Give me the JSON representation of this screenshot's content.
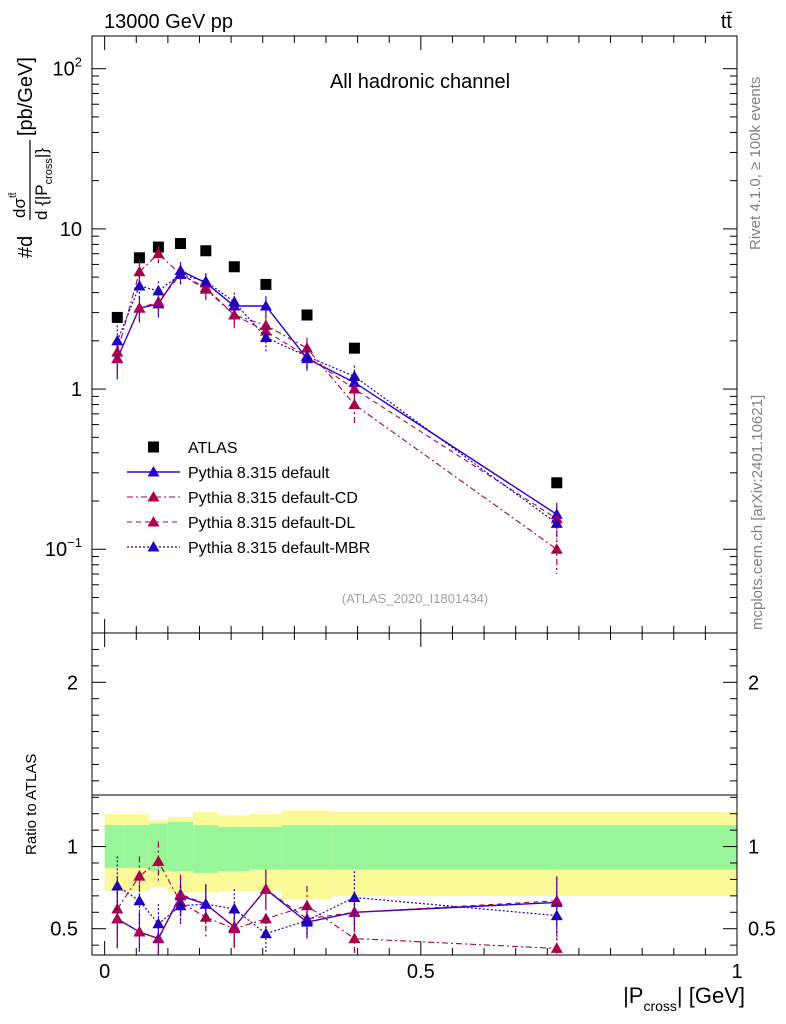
{
  "header": {
    "energy_label": "13000 GeV pp",
    "process_label": "tt̄"
  },
  "side_labels": {
    "rivet": "Rivet 4.1.0, ≥ 100k events",
    "mcplots": "mcplots.cern.ch [arXiv:2401.10621]"
  },
  "colors": {
    "data": "#000000",
    "default": "#2a00cc",
    "cd": "#aa0044",
    "dl": "#aa0055",
    "mbr": "#2200bb",
    "band_inner": "#99f599",
    "band_outer": "#fafa99"
  },
  "chart_data": [
    {
      "type": "scatter",
      "scale": "log",
      "title": "All hadronic channel",
      "analysis_tag": "(ATLAS_2020_I1801434)",
      "ylabel": "#d dσ^ttbar / d{|P_cross|} [pb/GeV]",
      "xlim": [
        -0.02,
        1.0
      ],
      "ylim": [
        0.03,
        160
      ],
      "yticks": [
        {
          "value": 0.1,
          "base": "10",
          "exp": "−1"
        },
        {
          "value": 1,
          "base": "1",
          "exp": ""
        },
        {
          "value": 10,
          "base": "10",
          "exp": ""
        },
        {
          "value": 100,
          "base": "10",
          "exp": "2"
        }
      ],
      "legend_position": "bottom-left",
      "series": [
        {
          "key": "atlas",
          "name": "ATLAS",
          "style": "data",
          "x": [
            0.02,
            0.055,
            0.085,
            0.12,
            0.16,
            0.205,
            0.255,
            0.32,
            0.395,
            0.715
          ],
          "y": [
            2.8,
            6.6,
            7.7,
            8.1,
            7.3,
            5.8,
            4.5,
            2.9,
            1.8,
            0.26
          ]
        },
        {
          "key": "default",
          "name": "Pythia 8.315 default",
          "style": "solid",
          "x": [
            0.02,
            0.055,
            0.085,
            0.12,
            0.16,
            0.205,
            0.255,
            0.32,
            0.395,
            0.715
          ],
          "y": [
            1.55,
            3.2,
            3.4,
            5.5,
            4.6,
            3.3,
            3.3,
            1.55,
            1.1,
            0.165
          ],
          "err": [
            0.4,
            0.6,
            0.6,
            0.7,
            0.6,
            0.5,
            0.5,
            0.25,
            0.2,
            0.03
          ]
        },
        {
          "key": "cd",
          "name": "Pythia 8.315 default-CD",
          "style": "dashdot",
          "x": [
            0.02,
            0.055,
            0.085,
            0.12,
            0.16,
            0.205,
            0.255,
            0.32,
            0.395,
            0.715
          ],
          "y": [
            1.7,
            5.4,
            7.0,
            5.2,
            4.2,
            2.9,
            2.5,
            1.8,
            0.8,
            0.1
          ],
          "err": [
            0.4,
            0.9,
            0.9,
            0.7,
            0.6,
            0.5,
            0.45,
            0.3,
            0.2,
            0.03
          ]
        },
        {
          "key": "dl",
          "name": "Pythia 8.315 default-DL",
          "style": "dashed",
          "x": [
            0.02,
            0.055,
            0.085,
            0.12,
            0.16,
            0.205,
            0.255,
            0.32,
            0.395,
            0.715
          ],
          "y": [
            1.55,
            3.2,
            3.5,
            5.2,
            4.3,
            2.9,
            2.3,
            1.6,
            1.0,
            0.155
          ],
          "err": [
            0.4,
            0.6,
            0.6,
            0.7,
            0.6,
            0.5,
            0.4,
            0.25,
            0.2,
            0.03
          ]
        },
        {
          "key": "mbr",
          "name": "Pythia 8.315 default-MBR",
          "style": "dotted",
          "x": [
            0.02,
            0.055,
            0.085,
            0.12,
            0.16,
            0.205,
            0.255,
            0.32,
            0.395,
            0.715
          ],
          "y": [
            2.0,
            4.4,
            4.1,
            5.2,
            4.7,
            3.5,
            2.1,
            1.6,
            1.2,
            0.145
          ],
          "err": [
            0.5,
            0.7,
            0.6,
            0.7,
            0.6,
            0.5,
            0.4,
            0.25,
            0.2,
            0.03
          ]
        }
      ]
    },
    {
      "type": "scatter",
      "scale": "linear",
      "ylabel": "Ratio to ATLAS",
      "xlabel": "|P_cross| [GeV]",
      "xlim": [
        -0.02,
        1.0
      ],
      "ylim": [
        0.34,
        2.3
      ],
      "xticks": [
        0,
        0.5,
        1
      ],
      "xtick_labels": [
        "0",
        "0.5",
        "1"
      ],
      "yticks": [
        0.5,
        1,
        2
      ],
      "ytick_labels": [
        "0.5",
        "1",
        "2"
      ],
      "bands": {
        "edges": [
          0,
          0.03,
          0.07,
          0.1,
          0.14,
          0.18,
          0.23,
          0.28,
          0.36,
          0.43,
          1.0
        ],
        "inner_low": [
          0.87,
          0.87,
          0.85,
          0.85,
          0.84,
          0.85,
          0.86,
          0.86,
          0.86,
          0.86
        ],
        "inner_high": [
          1.13,
          1.13,
          1.14,
          1.15,
          1.13,
          1.12,
          1.12,
          1.13,
          1.13,
          1.13
        ],
        "outer_low": [
          0.73,
          0.73,
          0.75,
          0.72,
          0.72,
          0.73,
          0.73,
          0.68,
          0.7,
          0.7
        ],
        "outer_high": [
          1.2,
          1.2,
          1.16,
          1.18,
          1.21,
          1.19,
          1.2,
          1.22,
          1.21,
          1.21
        ]
      },
      "series": [
        {
          "key": "default",
          "name": "Pythia 8.315 default",
          "style": "solid",
          "x": [
            0.02,
            0.055,
            0.085,
            0.12,
            0.16,
            0.205,
            0.255,
            0.32,
            0.395,
            0.715
          ],
          "y": [
            0.56,
            0.48,
            0.44,
            0.7,
            0.65,
            0.51,
            0.74,
            0.54,
            0.6,
            0.66
          ],
          "err": [
            0.18,
            0.12,
            0.1,
            0.12,
            0.12,
            0.12,
            0.12,
            0.1,
            0.12,
            0.15
          ]
        },
        {
          "key": "cd",
          "name": "Pythia 8.315 default-CD",
          "style": "dashdot",
          "x": [
            0.02,
            0.055,
            0.085,
            0.12,
            0.16,
            0.205,
            0.255,
            0.32,
            0.395,
            0.715
          ],
          "y": [
            0.62,
            0.82,
            0.91,
            0.66,
            0.57,
            0.5,
            0.56,
            0.64,
            0.44,
            0.38
          ],
          "err": [
            0.2,
            0.12,
            0.12,
            0.12,
            0.12,
            0.12,
            0.12,
            0.12,
            0.12,
            0.12
          ]
        },
        {
          "key": "dl",
          "name": "Pythia 8.315 default-DL",
          "style": "dashed",
          "x": [
            0.02,
            0.055,
            0.085,
            0.12,
            0.16,
            0.205,
            0.255,
            0.32,
            0.395,
            0.715
          ],
          "y": [
            0.56,
            0.48,
            0.44,
            0.71,
            0.65,
            0.51,
            0.74,
            0.56,
            0.6,
            0.67
          ],
          "err": [
            0.18,
            0.12,
            0.1,
            0.12,
            0.12,
            0.12,
            0.12,
            0.1,
            0.12,
            0.15
          ]
        },
        {
          "key": "mbr",
          "name": "Pythia 8.315 default-MBR",
          "style": "dotted",
          "x": [
            0.02,
            0.055,
            0.085,
            0.12,
            0.16,
            0.205,
            0.255,
            0.32,
            0.395,
            0.715
          ],
          "y": [
            0.76,
            0.67,
            0.53,
            0.64,
            0.65,
            0.62,
            0.47,
            0.55,
            0.69,
            0.58
          ],
          "err": [
            0.18,
            0.14,
            0.12,
            0.12,
            0.12,
            0.12,
            0.12,
            0.1,
            0.16,
            0.15
          ]
        }
      ]
    }
  ]
}
